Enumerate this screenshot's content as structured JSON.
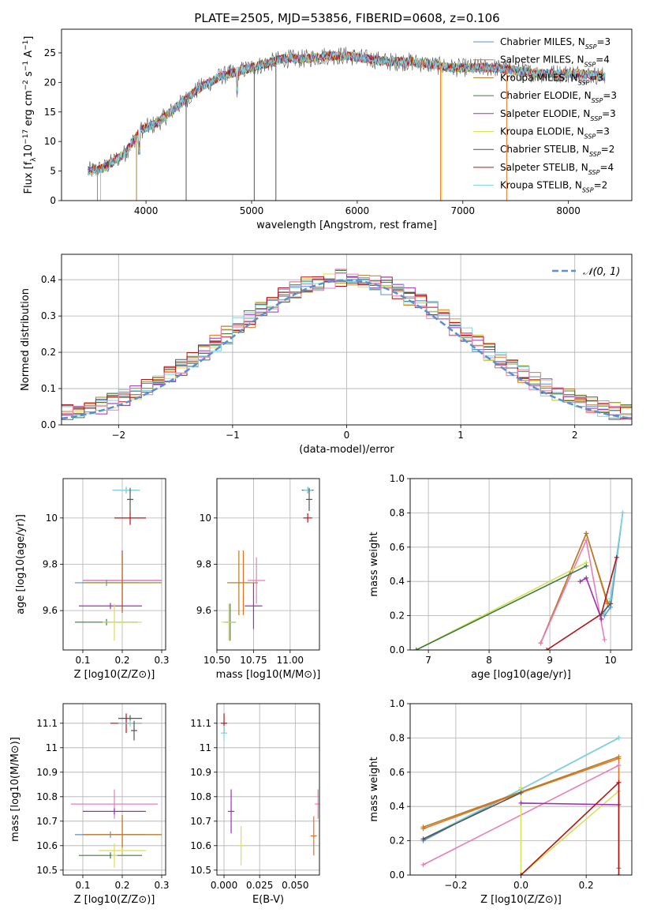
{
  "figure": {
    "title": "PLATE=2505, MJD=53856, FIBERID=0608, z=0.106"
  },
  "colors": {
    "Chabrier MILES": "#5b8fd1",
    "Salpeter MILES": "#e6741e",
    "Kroupa MILES": "#b57d2a",
    "Chabrier ELODIE": "#3c7d3c",
    "Salpeter ELODIE": "#9b30b8",
    "Kroupa ELODIE": "#d8df58",
    "Chabrier STELIB": "#555555",
    "Salpeter STELIB": "#b31515",
    "Kroupa STELIB": "#7fd3dc",
    "pink": "#e77fb6",
    "grid": "#b0b0b0",
    "gaussian": "#5b8fd1"
  },
  "chart_data": [
    {
      "id": "spectrum",
      "type": "line",
      "xlabel": "wavelength [Angstrom, rest frame]",
      "ylabel": "Flux [f_λ10^-17 erg cm^-2 s^-1 A^-1]",
      "xlim": [
        3200,
        8600
      ],
      "ylim": [
        0,
        29
      ],
      "xticks": [
        4000,
        5000,
        6000,
        7000,
        8000
      ],
      "yticks": [
        0,
        5,
        10,
        15,
        20,
        25
      ],
      "grid": false,
      "legend_position": "right",
      "legend": [
        {
          "model": "Chabrier MILES",
          "prefix": "Chabrier MILES, N",
          "sub": "SSP",
          "value": "=3"
        },
        {
          "model": "Salpeter MILES",
          "prefix": "Salpeter MILES, N",
          "sub": "SSP",
          "value": "=4"
        },
        {
          "model": "Kroupa MILES",
          "prefix": "Kroupa MILES, N",
          "sub": "SSP",
          "value": "=3"
        },
        {
          "model": "Chabrier ELODIE",
          "prefix": "Chabrier ELODIE, N",
          "sub": "SSP",
          "value": "=3"
        },
        {
          "model": "Salpeter ELODIE",
          "prefix": "Salpeter ELODIE, N",
          "sub": "SSP",
          "value": "=3"
        },
        {
          "model": "Kroupa ELODIE",
          "prefix": "Kroupa ELODIE, N",
          "sub": "SSP",
          "value": "=3"
        },
        {
          "model": "Chabrier STELIB",
          "prefix": "Chabrier STELIB, N",
          "sub": "SSP",
          "value": "=2"
        },
        {
          "model": "Salpeter STELIB",
          "prefix": "Salpeter STELIB, N",
          "sub": "SSP",
          "value": "=4"
        },
        {
          "model": "Kroupa STELIB",
          "prefix": "Kroupa STELIB, N",
          "sub": "SSP",
          "value": "=2"
        }
      ],
      "continuum": [
        [
          3450,
          5
        ],
        [
          3600,
          5.5
        ],
        [
          3800,
          8
        ],
        [
          3950,
          12
        ],
        [
          4100,
          13
        ],
        [
          4300,
          16
        ],
        [
          4500,
          19
        ],
        [
          4700,
          21
        ],
        [
          4900,
          22
        ],
        [
          5100,
          23
        ],
        [
          5300,
          24
        ],
        [
          5500,
          24
        ],
        [
          5700,
          24.5
        ],
        [
          5900,
          24.5
        ],
        [
          6100,
          24
        ],
        [
          6300,
          23.5
        ],
        [
          6500,
          23.5
        ],
        [
          6700,
          23
        ],
        [
          6900,
          22.5
        ],
        [
          7100,
          22.5
        ],
        [
          7300,
          22.5
        ],
        [
          7500,
          22
        ],
        [
          7700,
          21.5
        ],
        [
          7900,
          21.5
        ],
        [
          8100,
          21.5
        ],
        [
          8350,
          21
        ]
      ]
    },
    {
      "id": "residuals",
      "type": "line",
      "xlabel": "(data-model)/error",
      "ylabel": "Normed distribution",
      "xlim": [
        -2.5,
        2.5
      ],
      "ylim": [
        0,
        0.47
      ],
      "xticks": [
        -2,
        -1,
        0,
        1,
        2
      ],
      "xtick_labels": [
        "−2",
        "−1",
        "0",
        "1",
        "2"
      ],
      "yticks": [
        0.0,
        0.1,
        0.2,
        0.3,
        0.4
      ],
      "ytick_labels": [
        "0.0",
        "0.1",
        "0.2",
        "0.3",
        "0.4"
      ],
      "grid": true,
      "legend_position": "top-right",
      "legend_label": "𝒩(0, 1)",
      "bin_width": 0.1
    },
    {
      "id": "age_vs_Z",
      "type": "scatter",
      "xlabel": "Z [log10(Z/Z⊙)]",
      "ylabel": "age [log10(age/yr)]",
      "xlim": [
        0.05,
        0.31
      ],
      "ylim": [
        9.43,
        10.17
      ],
      "xticks": [
        0.1,
        0.2,
        0.3
      ],
      "yticks": [
        9.6,
        9.8,
        10.0
      ],
      "grid": true,
      "points": [
        {
          "model": "Chabrier MILES",
          "x": 0.21,
          "y": 10.12,
          "xerr": 0.03,
          "yerr": 0.0
        },
        {
          "model": "Kroupa STELIB",
          "x": 0.21,
          "y": 10.12,
          "xerr": 0.035,
          "yerr": 0.0
        },
        {
          "model": "Chabrier STELIB",
          "x": 0.22,
          "y": 10.08,
          "xerr": 0.0,
          "yerr": 0.05
        },
        {
          "model": "Salpeter STELIB",
          "x": 0.22,
          "y": 10.0,
          "xerr": 0.04,
          "yerr": 0.03
        },
        {
          "model": "Salpeter ELODIE",
          "x": 0.2,
          "y": 9.73,
          "xerr": 0.1,
          "yerr": 0.13
        },
        {
          "model": "pink",
          "x": 0.2,
          "y": 9.73,
          "xerr": 0.1,
          "yerr": 0.0
        },
        {
          "model": "Chabrier MILES",
          "x": 0.16,
          "y": 9.72,
          "xerr": 0.08,
          "yerr": 0.0
        },
        {
          "model": "Salpeter MILES",
          "x": 0.2,
          "y": 9.72,
          "xerr": 0.1,
          "yerr": 0.13
        },
        {
          "model": "Kroupa MILES",
          "x": 0.2,
          "y": 9.72,
          "xerr": 0.1,
          "yerr": 0.13
        },
        {
          "model": "Salpeter ELODIE",
          "x": 0.17,
          "y": 9.62,
          "xerr": 0.08,
          "yerr": 0.0
        },
        {
          "model": "Chabrier ELODIE",
          "x": 0.16,
          "y": 9.55,
          "xerr": 0.08,
          "yerr": 0.0
        },
        {
          "model": "Kroupa ELODIE",
          "x": 0.2,
          "y": 9.55,
          "xerr": 0.05,
          "yerr": 0.0
        },
        {
          "model": "Kroupa ELODIE",
          "x": 0.18,
          "y": 9.55,
          "xerr": 0.0,
          "yerr": 0.08
        }
      ]
    },
    {
      "id": "age_vs_mass",
      "type": "scatter",
      "xlabel": "mass [log10(M/M⊙)]",
      "ylabel": "",
      "xlim": [
        10.5,
        11.2
      ],
      "ylim": [
        9.43,
        10.17
      ],
      "xticks": [
        10.5,
        10.75,
        11.0
      ],
      "xtick_labels": [
        "10.50",
        "10.75",
        "11.00"
      ],
      "yticks": [
        9.6,
        9.8,
        10.0
      ],
      "grid": true,
      "points": [
        {
          "model": "Chabrier STELIB",
          "x": 11.12,
          "y": 10.12,
          "xerr": 0.04,
          "yerr": 0.0
        },
        {
          "model": "Kroupa STELIB",
          "x": 11.12,
          "y": 10.12,
          "xerr": 0.03,
          "yerr": 0.0
        },
        {
          "model": "Chabrier STELIB",
          "x": 11.13,
          "y": 10.08,
          "xerr": 0.0,
          "yerr": 0.05
        },
        {
          "model": "Salpeter STELIB",
          "x": 11.12,
          "y": 10.0,
          "xerr": 0.03,
          "yerr": 0.02
        },
        {
          "model": "pink",
          "x": 10.77,
          "y": 9.73,
          "xerr": 0.06,
          "yerr": 0.1
        },
        {
          "model": "Salpeter MILES",
          "x": 10.68,
          "y": 9.72,
          "xerr": 0.1,
          "yerr": 0.14
        },
        {
          "model": "Kroupa MILES",
          "x": 10.65,
          "y": 9.72,
          "xerr": 0.08,
          "yerr": 0.14
        },
        {
          "model": "Salpeter ELODIE",
          "x": 10.75,
          "y": 9.62,
          "xerr": 0.06,
          "yerr": 0.1
        },
        {
          "model": "Chabrier ELODIE",
          "x": 10.59,
          "y": 9.55,
          "xerr": 0.04,
          "yerr": 0.08
        },
        {
          "model": "Kroupa ELODIE",
          "x": 10.58,
          "y": 9.55,
          "xerr": 0.05,
          "yerr": 0.08
        }
      ]
    },
    {
      "id": "weight_vs_age",
      "type": "line",
      "xlabel": "age [log10(age/yr)]",
      "ylabel": "mass weight",
      "xlim": [
        6.7,
        10.35
      ],
      "ylim": [
        0,
        1
      ],
      "xticks": [
        7,
        8,
        9,
        10
      ],
      "yticks": [
        0.0,
        0.2,
        0.4,
        0.6,
        0.8,
        1.0
      ],
      "ytick_labels": [
        "0.0",
        "0.2",
        "0.4",
        "0.6",
        "0.8",
        "1.0"
      ],
      "grid": true,
      "series": [
        {
          "model": "Chabrier MILES",
          "x": [
            9.9,
            10.0,
            10.2
          ],
          "y": [
            0.2,
            0.25,
            0.8
          ]
        },
        {
          "model": "Kroupa STELIB",
          "x": [
            9.9,
            10.0,
            10.2
          ],
          "y": [
            0.22,
            0.3,
            0.8
          ]
        },
        {
          "model": "Salpeter MILES",
          "x": [
            8.85,
            9.6,
            9.95
          ],
          "y": [
            0.04,
            0.68,
            0.27
          ]
        },
        {
          "model": "Kroupa MILES",
          "x": [
            8.85,
            9.6,
            9.95
          ],
          "y": [
            0.04,
            0.68,
            0.28
          ]
        },
        {
          "model": "pink",
          "x": [
            8.85,
            9.6,
            9.9
          ],
          "y": [
            0.04,
            0.64,
            0.06
          ]
        },
        {
          "model": "Kroupa ELODIE",
          "x": [
            6.8,
            9.6
          ],
          "y": [
            0.0,
            0.51
          ]
        },
        {
          "model": "Chabrier ELODIE",
          "x": [
            6.8,
            9.6
          ],
          "y": [
            0.0,
            0.49
          ]
        },
        {
          "model": "Salpeter ELODIE",
          "x": [
            9.5,
            9.6,
            9.85
          ],
          "y": [
            0.4,
            0.42,
            0.18
          ]
        },
        {
          "model": "Salpeter STELIB",
          "x": [
            8.95,
            9.85,
            10.1
          ],
          "y": [
            0.0,
            0.21,
            0.54
          ]
        },
        {
          "model": "Chabrier STELIB",
          "x": [
            9.85,
            10.0
          ],
          "y": [
            0.21,
            0.27
          ]
        }
      ]
    },
    {
      "id": "mass_vs_Z",
      "type": "scatter",
      "xlabel": "Z [log10(Z/Z⊙)]",
      "ylabel": "mass [log10(M/M⊙)]",
      "xlim": [
        0.05,
        0.31
      ],
      "ylim": [
        10.48,
        11.18
      ],
      "xticks": [
        0.1,
        0.2,
        0.3
      ],
      "yticks": [
        10.5,
        10.6,
        10.7,
        10.8,
        10.9,
        11.0,
        11.1
      ],
      "grid": true,
      "points": [
        {
          "model": "Chabrier STELIB",
          "x": 0.22,
          "y": 11.12,
          "xerr": 0.03,
          "yerr": 0.0
        },
        {
          "model": "Salpeter STELIB",
          "x": 0.21,
          "y": 11.1,
          "xerr": 0.04,
          "yerr": 0.04
        },
        {
          "model": "Kroupa STELIB",
          "x": 0.22,
          "y": 11.1,
          "xerr": 0.03,
          "yerr": 0.0
        },
        {
          "model": "Chabrier STELIB",
          "x": 0.23,
          "y": 11.07,
          "xerr": 0.0,
          "yerr": 0.04
        },
        {
          "model": "pink",
          "x": 0.18,
          "y": 10.77,
          "xerr": 0.11,
          "yerr": 0.06
        },
        {
          "model": "Salpeter ELODIE",
          "x": 0.18,
          "y": 10.74,
          "xerr": 0.08,
          "yerr": 0.0
        },
        {
          "model": "Chabrier MILES",
          "x": 0.17,
          "y": 10.645,
          "xerr": 0.09,
          "yerr": 0.0
        },
        {
          "model": "Salpeter MILES",
          "x": 0.2,
          "y": 10.645,
          "xerr": 0.1,
          "yerr": 0.08
        },
        {
          "model": "Kroupa MILES",
          "x": 0.2,
          "y": 10.645,
          "xerr": 0.1,
          "yerr": 0.08
        },
        {
          "model": "Kroupa ELODIE",
          "x": 0.2,
          "y": 10.58,
          "xerr": 0.06,
          "yerr": 0.0
        },
        {
          "model": "Chabrier ELODIE",
          "x": 0.17,
          "y": 10.56,
          "xerr": 0.08,
          "yerr": 0.0
        },
        {
          "model": "Kroupa ELODIE",
          "x": 0.18,
          "y": 10.56,
          "xerr": 0.0,
          "yerr": 0.05
        }
      ]
    },
    {
      "id": "mass_vs_ebv",
      "type": "scatter",
      "xlabel": "E(B-V)",
      "ylabel": "",
      "xlim": [
        -0.005,
        0.067
      ],
      "ylim": [
        10.48,
        11.18
      ],
      "xticks": [
        0.0,
        0.025,
        0.05
      ],
      "xtick_labels": [
        "0.000",
        "0.025",
        "0.050"
      ],
      "yticks": [
        10.5,
        10.6,
        10.7,
        10.8,
        10.9,
        11.0,
        11.1
      ],
      "grid": true,
      "points": [
        {
          "model": "Salpeter STELIB",
          "x": 0.0,
          "y": 11.1,
          "xerr": 0.0,
          "yerr": 0.04
        },
        {
          "model": "Kroupa STELIB",
          "x": 0.0,
          "y": 11.06,
          "xerr": 0.0,
          "yerr": 0.03
        },
        {
          "model": "Salpeter ELODIE",
          "x": 0.005,
          "y": 10.74,
          "xerr": 0.0,
          "yerr": 0.09
        },
        {
          "model": "Kroupa ELODIE",
          "x": 0.012,
          "y": 10.6,
          "xerr": 0.0,
          "yerr": 0.08
        },
        {
          "model": "Salpeter MILES",
          "x": 0.063,
          "y": 10.64,
          "xerr": 0.0,
          "yerr": 0.08
        },
        {
          "model": "pink",
          "x": 0.066,
          "y": 10.77,
          "xerr": 0.0,
          "yerr": 0.06
        }
      ]
    },
    {
      "id": "weight_vs_Z",
      "type": "line",
      "xlabel": "Z [log10(Z/Z⊙)]",
      "ylabel": "mass weight",
      "xlim": [
        -0.34,
        0.34
      ],
      "ylim": [
        0,
        1
      ],
      "xticks": [
        -0.2,
        0.0,
        0.2
      ],
      "xtick_labels": [
        "−0.2",
        "0.0",
        "0.2"
      ],
      "yticks": [
        0.0,
        0.2,
        0.4,
        0.6,
        0.8,
        1.0
      ],
      "ytick_labels": [
        "0.0",
        "0.2",
        "0.4",
        "0.6",
        "0.8",
        "1.0"
      ],
      "grid": true,
      "series": [
        {
          "model": "Chabrier MILES",
          "x": [
            -0.3,
            0.3
          ],
          "y": [
            0.2,
            0.8
          ]
        },
        {
          "model": "Kroupa STELIB",
          "x": [
            -0.3,
            0.0,
            0.3
          ],
          "y": [
            0.21,
            0.5,
            0.8
          ]
        },
        {
          "model": "Salpeter MILES",
          "x": [
            -0.3,
            0.0,
            0.3,
            0.3
          ],
          "y": [
            0.27,
            0.48,
            0.68,
            0.04
          ]
        },
        {
          "model": "Kroupa MILES",
          "x": [
            -0.3,
            0.3
          ],
          "y": [
            0.28,
            0.69
          ]
        },
        {
          "model": "pink",
          "x": [
            -0.3,
            0.3
          ],
          "y": [
            0.06,
            0.64
          ]
        },
        {
          "model": "Kroupa ELODIE",
          "x": [
            0.0,
            0.0,
            0.3
          ],
          "y": [
            0.51,
            0.0,
            0.49
          ]
        },
        {
          "model": "Salpeter ELODIE",
          "x": [
            0.0,
            0.3
          ],
          "y": [
            0.42,
            0.41
          ]
        },
        {
          "model": "Salpeter STELIB",
          "x": [
            0.0,
            0.3,
            0.3
          ],
          "y": [
            0.0,
            0.54,
            0.0
          ]
        },
        {
          "model": "Chabrier STELIB",
          "x": [
            -0.3,
            0.0
          ],
          "y": [
            0.21,
            0.48
          ]
        }
      ]
    }
  ]
}
